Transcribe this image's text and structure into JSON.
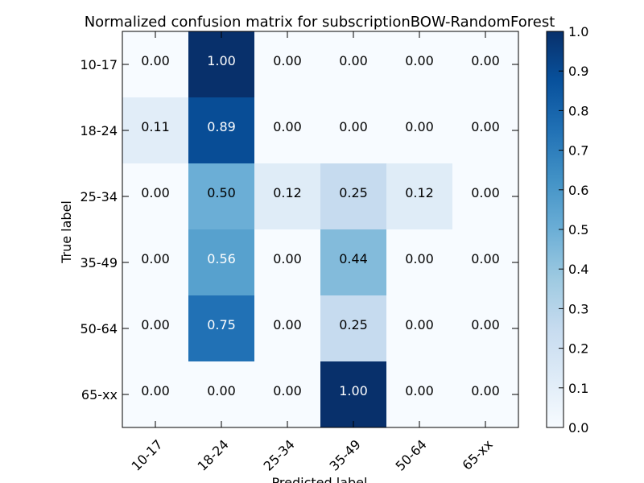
{
  "chart_data": {
    "type": "heatmap",
    "title": "Normalized confusion matrix for subscriptionBOW-RandomForest",
    "xlabel": "Predicted label",
    "ylabel": "True label",
    "x_categories": [
      "10-17",
      "18-24",
      "25-34",
      "35-49",
      "50-64",
      "65-xx"
    ],
    "y_categories": [
      "10-17",
      "18-24",
      "25-34",
      "35-49",
      "50-64",
      "65-xx"
    ],
    "values": [
      [
        0.0,
        1.0,
        0.0,
        0.0,
        0.0,
        0.0
      ],
      [
        0.11,
        0.89,
        0.0,
        0.0,
        0.0,
        0.0
      ],
      [
        0.0,
        0.5,
        0.12,
        0.25,
        0.12,
        0.0
      ],
      [
        0.0,
        0.56,
        0.0,
        0.44,
        0.0,
        0.0
      ],
      [
        0.0,
        0.75,
        0.0,
        0.25,
        0.0,
        0.0
      ],
      [
        0.0,
        0.0,
        0.0,
        1.0,
        0.0,
        0.0
      ]
    ],
    "value_format": "0.00",
    "colormap": "Blues",
    "colormap_stops": [
      "#f7fbff",
      "#deebf7",
      "#c6dbef",
      "#9ecae1",
      "#6baed6",
      "#4292c6",
      "#2171b5",
      "#08519c",
      "#08306b"
    ],
    "colorbar": {
      "range": [
        0.0,
        1.0
      ],
      "ticks": [
        "0.0",
        "0.1",
        "0.2",
        "0.3",
        "0.4",
        "0.5",
        "0.6",
        "0.7",
        "0.8",
        "0.9",
        "1.0"
      ]
    },
    "label_color_dark": "#000000",
    "label_color_light": "#ffffff"
  }
}
